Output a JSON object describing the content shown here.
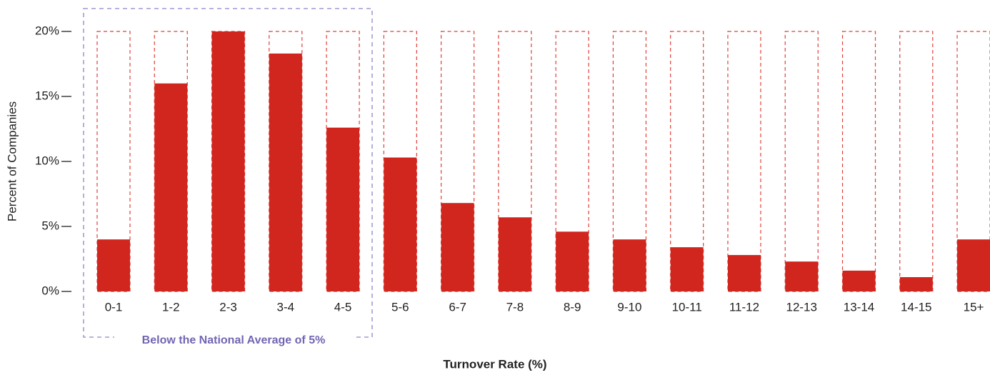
{
  "chart_data": {
    "type": "bar",
    "x_label": "Turnover Rate (%)",
    "y_label": "Percent of Companies",
    "annotation": "Below the National Average of 5%",
    "categories": [
      "0-1",
      "1-2",
      "2-3",
      "3-4",
      "4-5",
      "5-6",
      "6-7",
      "7-8",
      "8-9",
      "9-10",
      "10-11",
      "11-12",
      "12-13",
      "13-14",
      "14-15",
      "15+"
    ],
    "values": [
      4.0,
      16.0,
      20.0,
      18.3,
      12.6,
      10.3,
      6.8,
      5.7,
      4.6,
      4.0,
      3.4,
      2.8,
      2.3,
      1.6,
      1.1,
      4.0
    ],
    "color": "#d1261e",
    "ylim": [
      0,
      20
    ],
    "yticks": [
      {
        "value": 0,
        "label": "0%"
      },
      {
        "value": 5,
        "label": "5%"
      },
      {
        "value": 10,
        "label": "10%"
      },
      {
        "value": 15,
        "label": "15%"
      },
      {
        "value": 20,
        "label": "20%"
      }
    ]
  }
}
